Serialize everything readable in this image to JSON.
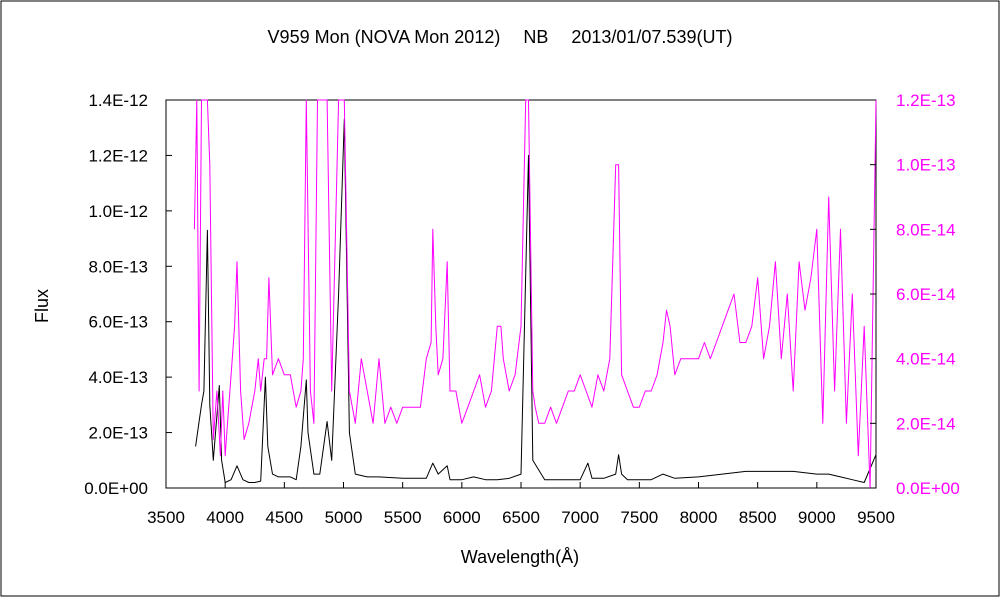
{
  "chart_data": {
    "type": "line",
    "title": "V959 Mon (NOVA Mon 2012)　 NB　 2013/01/07.539(UT)",
    "xlabel": "Wavelength(Å)",
    "ylabel": "Flux",
    "xlim": [
      3500,
      9500
    ],
    "ylim_left": [
      0,
      1.4e-12
    ],
    "ylim_right": [
      0,
      1.2e-13
    ],
    "x_ticks": [
      "3500",
      "4000",
      "4500",
      "5000",
      "5500",
      "6000",
      "6500",
      "7000",
      "7500",
      "8000",
      "8500",
      "9000",
      "9500"
    ],
    "y_ticks_left": [
      "0.0E+00",
      "2.0E-13",
      "4.0E-13",
      "6.0E-13",
      "8.0E-13",
      "1.0E-12",
      "1.2E-12",
      "1.4E-12"
    ],
    "y_ticks_right": [
      "0.0E+00",
      "2.0E-14",
      "4.0E-14",
      "6.0E-14",
      "8.0E-14",
      "1.0E-13",
      "1.2E-13"
    ],
    "grid": false,
    "legend": "none",
    "series": [
      {
        "axis": "left",
        "color": "#000000",
        "x": [
          3750,
          3780,
          3800,
          3820,
          3850,
          3870,
          3900,
          3950,
          3970,
          4000,
          4050,
          4100,
          4150,
          4200,
          4250,
          4300,
          4340,
          4360,
          4400,
          4450,
          4500,
          4550,
          4600,
          4640,
          4686,
          4700,
          4750,
          4800,
          4861,
          4900,
          4959,
          5007,
          5050,
          5100,
          5200,
          5300,
          5500,
          5700,
          5755,
          5800,
          5876,
          5900,
          6000,
          6100,
          6200,
          6300,
          6400,
          6500,
          6563,
          6600,
          6700,
          6800,
          7000,
          7065,
          7100,
          7200,
          7300,
          7325,
          7350,
          7400,
          7500,
          7600,
          7700,
          7800,
          8000,
          8200,
          8400,
          8600,
          8800,
          9000,
          9100,
          9200,
          9300,
          9400,
          9500
        ],
        "y": [
          1.5e-13,
          2.4e-13,
          3e-13,
          3.5e-13,
          9.3e-13,
          3e-13,
          1e-13,
          3.7e-13,
          1e-13,
          2e-14,
          3e-14,
          8e-14,
          3e-14,
          2e-14,
          2e-14,
          2.5e-14,
          4e-13,
          1.5e-13,
          5e-14,
          4e-14,
          4e-14,
          4e-14,
          3e-14,
          1.5e-13,
          3.9e-13,
          2e-13,
          5e-14,
          5e-14,
          2.4e-13,
          1e-13,
          7e-13,
          1.33e-12,
          2e-13,
          5e-14,
          4e-14,
          4e-14,
          3.5e-14,
          3.5e-14,
          9e-14,
          5e-14,
          8e-14,
          3e-14,
          3e-14,
          4e-14,
          3e-14,
          3e-14,
          3.5e-14,
          5e-14,
          1.2e-12,
          1e-13,
          3e-14,
          3e-14,
          3e-14,
          9e-14,
          3.5e-14,
          3.5e-14,
          5e-14,
          1.2e-13,
          5e-14,
          3e-14,
          3e-14,
          3e-14,
          5e-14,
          3.5e-14,
          4e-14,
          5e-14,
          6e-14,
          6e-14,
          6e-14,
          5e-14,
          5e-14,
          4e-14,
          3e-14,
          2e-14,
          1.2e-13
        ]
      },
      {
        "axis": "right",
        "color": "#ff00ff",
        "x": [
          3740,
          3760,
          3780,
          3800,
          3830,
          3850,
          3870,
          3900,
          3930,
          3960,
          3980,
          4000,
          4020,
          4050,
          4080,
          4100,
          4130,
          4160,
          4200,
          4250,
          4280,
          4300,
          4330,
          4350,
          4370,
          4400,
          4450,
          4500,
          4550,
          4600,
          4640,
          4660,
          4686,
          4720,
          4750,
          4780,
          4800,
          4861,
          4900,
          4959,
          5007,
          5050,
          5100,
          5150,
          5200,
          5250,
          5300,
          5350,
          5400,
          5450,
          5500,
          5550,
          5600,
          5650,
          5700,
          5740,
          5755,
          5780,
          5800,
          5840,
          5876,
          5900,
          5950,
          6000,
          6050,
          6100,
          6150,
          6200,
          6250,
          6300,
          6330,
          6350,
          6400,
          6450,
          6500,
          6540,
          6563,
          6600,
          6620,
          6650,
          6700,
          6750,
          6800,
          6850,
          6900,
          6950,
          7000,
          7050,
          7100,
          7150,
          7200,
          7250,
          7300,
          7325,
          7350,
          7400,
          7450,
          7500,
          7550,
          7600,
          7650,
          7700,
          7730,
          7760,
          7800,
          7850,
          7900,
          7950,
          8000,
          8050,
          8100,
          8150,
          8200,
          8250,
          8300,
          8350,
          8400,
          8450,
          8500,
          8550,
          8600,
          8650,
          8700,
          8750,
          8800,
          8850,
          8900,
          8950,
          9000,
          9050,
          9100,
          9150,
          9200,
          9250,
          9300,
          9350,
          9400,
          9450,
          9500
        ],
        "y": [
          8e-14,
          1.2e-13,
          3e-14,
          1.2e-13,
          1.2e-13,
          1.2e-13,
          1e-13,
          1.5e-14,
          3e-14,
          1e-14,
          3e-14,
          1e-14,
          2e-14,
          3.5e-14,
          5e-14,
          7e-14,
          3e-14,
          1.5e-14,
          2e-14,
          3e-14,
          4e-14,
          3e-14,
          4e-14,
          4e-14,
          6.5e-14,
          3.5e-14,
          4e-14,
          3.5e-14,
          3.5e-14,
          2.5e-14,
          3e-14,
          4e-14,
          1.2e-13,
          3e-14,
          2e-14,
          1.2e-13,
          1.2e-13,
          1.2e-13,
          3e-14,
          1.2e-13,
          1.2e-13,
          3e-14,
          2e-14,
          4e-14,
          3e-14,
          2e-14,
          4e-14,
          2e-14,
          2.5e-14,
          2e-14,
          2.5e-14,
          2.5e-14,
          2.5e-14,
          2.5e-14,
          4e-14,
          4.5e-14,
          8e-14,
          5e-14,
          3.5e-14,
          4e-14,
          7e-14,
          3e-14,
          3e-14,
          2e-14,
          2.5e-14,
          3e-14,
          3.5e-14,
          2.5e-14,
          3e-14,
          5e-14,
          5e-14,
          4e-14,
          3e-14,
          3.5e-14,
          5e-14,
          1.2e-13,
          1.2e-13,
          3e-14,
          2.5e-14,
          2e-14,
          2e-14,
          2.5e-14,
          2e-14,
          2.5e-14,
          3e-14,
          3e-14,
          3.5e-14,
          3e-14,
          2.5e-14,
          3.5e-14,
          3e-14,
          4e-14,
          1e-13,
          1e-13,
          3.5e-14,
          3e-14,
          2.5e-14,
          2.5e-14,
          3e-14,
          3e-14,
          3.5e-14,
          4.5e-14,
          5.5e-14,
          5e-14,
          3.5e-14,
          4e-14,
          4e-14,
          4e-14,
          4e-14,
          4.5e-14,
          4e-14,
          4.5e-14,
          5e-14,
          5.5e-14,
          6e-14,
          4.5e-14,
          4.5e-14,
          5e-14,
          6.5e-14,
          4e-14,
          5e-14,
          7e-14,
          4e-14,
          6e-14,
          3e-14,
          7e-14,
          5.5e-14,
          6.5e-14,
          8e-14,
          2e-14,
          9e-14,
          3e-14,
          8e-14,
          2e-14,
          6e-14,
          1e-14,
          5e-14,
          0.0,
          1.2e-13
        ]
      }
    ]
  }
}
